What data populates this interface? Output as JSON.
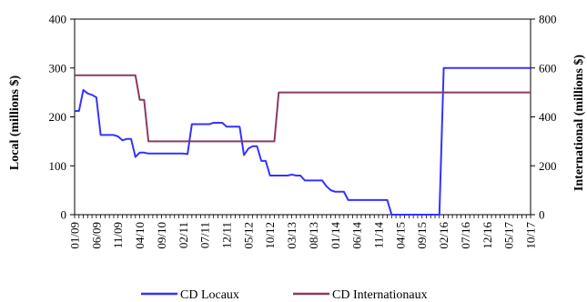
{
  "chart_data": {
    "type": "line",
    "x_ticks": [
      "01/09",
      "06/09",
      "11/09",
      "04/10",
      "09/10",
      "02/11",
      "07/11",
      "12/11",
      "05/12",
      "10/12",
      "03/13",
      "08/13",
      "01/14",
      "06/14",
      "11/14",
      "04/15",
      "09/15",
      "02/16",
      "07/16",
      "12/16",
      "05/17",
      "10/17"
    ],
    "y_left": {
      "label": "Local (millions  $)",
      "lim": [
        0,
        400
      ],
      "ticks": [
        0,
        100,
        200,
        300,
        400
      ]
    },
    "y_right": {
      "label": "International (millions $)",
      "lim": [
        0,
        800
      ],
      "ticks": [
        0,
        200,
        400,
        600,
        800
      ]
    },
    "grid": false,
    "legend": "bottom",
    "series": [
      {
        "name": "CD Locaux",
        "axis": "left",
        "color": "#3333ff",
        "points": [
          [
            "01/09",
            212
          ],
          [
            "02/09",
            212
          ],
          [
            "03/09",
            255
          ],
          [
            "04/09",
            248
          ],
          [
            "05/09",
            245
          ],
          [
            "06/09",
            240
          ],
          [
            "07/09",
            163
          ],
          [
            "08/09",
            163
          ],
          [
            "09/09",
            163
          ],
          [
            "10/09",
            163
          ],
          [
            "11/09",
            160
          ],
          [
            "12/09",
            152
          ],
          [
            "01/10",
            155
          ],
          [
            "02/10",
            155
          ],
          [
            "03/10",
            118
          ],
          [
            "04/10",
            127
          ],
          [
            "05/10",
            127
          ],
          [
            "06/10",
            125
          ],
          [
            "07/10",
            125
          ],
          [
            "08/10",
            125
          ],
          [
            "09/10",
            125
          ],
          [
            "10/10",
            125
          ],
          [
            "11/10",
            125
          ],
          [
            "12/10",
            125
          ],
          [
            "01/11",
            125
          ],
          [
            "02/11",
            125
          ],
          [
            "03/11",
            124
          ],
          [
            "04/11",
            185
          ],
          [
            "05/11",
            185
          ],
          [
            "06/11",
            185
          ],
          [
            "07/11",
            185
          ],
          [
            "08/11",
            185
          ],
          [
            "09/11",
            188
          ],
          [
            "10/11",
            188
          ],
          [
            "11/11",
            188
          ],
          [
            "12/11",
            180
          ],
          [
            "01/12",
            180
          ],
          [
            "02/12",
            180
          ],
          [
            "03/12",
            180
          ],
          [
            "04/12",
            122
          ],
          [
            "05/12",
            135
          ],
          [
            "06/12",
            140
          ],
          [
            "07/12",
            140
          ],
          [
            "08/12",
            110
          ],
          [
            "09/12",
            110
          ],
          [
            "10/12",
            80
          ],
          [
            "11/12",
            80
          ],
          [
            "12/12",
            80
          ],
          [
            "01/13",
            80
          ],
          [
            "02/13",
            80
          ],
          [
            "03/13",
            82
          ],
          [
            "04/13",
            80
          ],
          [
            "05/13",
            80
          ],
          [
            "06/13",
            70
          ],
          [
            "07/13",
            70
          ],
          [
            "08/13",
            70
          ],
          [
            "09/13",
            70
          ],
          [
            "10/13",
            70
          ],
          [
            "11/13",
            58
          ],
          [
            "12/13",
            50
          ],
          [
            "01/14",
            47
          ],
          [
            "02/14",
            47
          ],
          [
            "03/14",
            47
          ],
          [
            "04/14",
            30
          ],
          [
            "05/14",
            30
          ],
          [
            "06/14",
            30
          ],
          [
            "07/14",
            30
          ],
          [
            "08/14",
            30
          ],
          [
            "09/14",
            30
          ],
          [
            "10/14",
            30
          ],
          [
            "11/14",
            30
          ],
          [
            "12/14",
            30
          ],
          [
            "01/15",
            30
          ],
          [
            "02/15",
            0
          ],
          [
            "03/15",
            0
          ],
          [
            "04/15",
            0
          ],
          [
            "05/15",
            0
          ],
          [
            "06/15",
            0
          ],
          [
            "07/15",
            0
          ],
          [
            "08/15",
            0
          ],
          [
            "09/15",
            0
          ],
          [
            "10/15",
            0
          ],
          [
            "11/15",
            0
          ],
          [
            "12/15",
            0
          ],
          [
            "01/16",
            0
          ],
          [
            "02/16",
            300
          ],
          [
            "03/16",
            300
          ],
          [
            "10/17",
            300
          ]
        ]
      },
      {
        "name": "CD Internationaux",
        "axis": "right",
        "color": "#8b3a62",
        "points": [
          [
            "01/09",
            570
          ],
          [
            "02/10",
            570
          ],
          [
            "03/10",
            570
          ],
          [
            "04/10",
            470
          ],
          [
            "05/10",
            470
          ],
          [
            "06/10",
            300
          ],
          [
            "11/12",
            300
          ],
          [
            "12/12",
            500
          ],
          [
            "10/17",
            500
          ]
        ]
      }
    ]
  }
}
